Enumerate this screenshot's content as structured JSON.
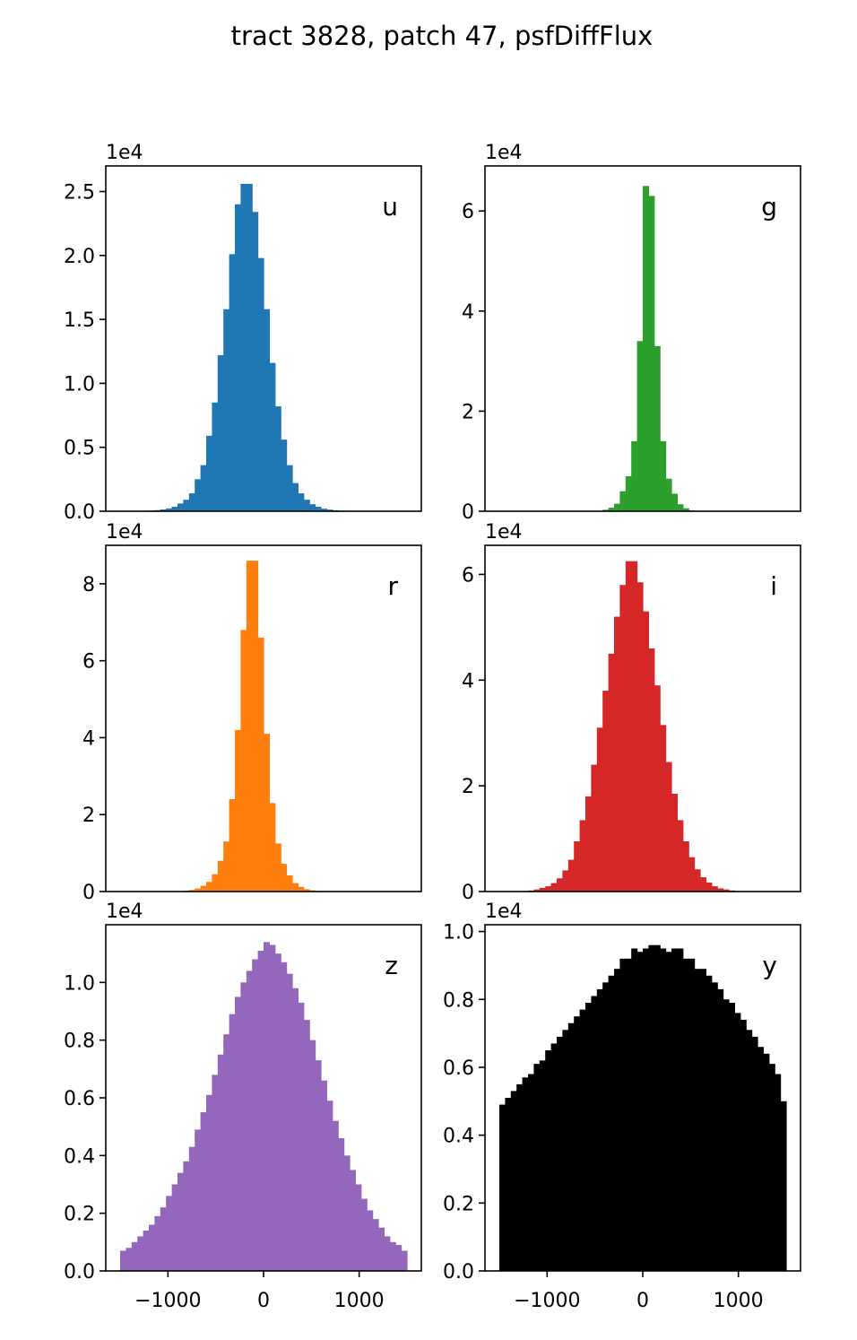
{
  "figure_title": "tract 3828, patch 47, psfDiffFlux",
  "chart_data": [
    {
      "type": "bar",
      "panel": "u",
      "band_label": "u",
      "color": "#1f77b4",
      "multiplier_label": "1e4",
      "xlim": [
        -1650,
        1650
      ],
      "ylim": [
        0,
        2.7
      ],
      "yticks": [
        0.0,
        0.5,
        1.0,
        1.5,
        2.0,
        2.5
      ],
      "ytick_labels": [
        "0.0",
        "0.5",
        "1.0",
        "1.5",
        "2.0",
        "2.5"
      ],
      "xticks": [],
      "xtick_labels": [],
      "bin_start": -1500,
      "bin_width": 60,
      "values": [
        0.001,
        0.001,
        0.002,
        0.003,
        0.004,
        0.006,
        0.009,
        0.014,
        0.022,
        0.035,
        0.06,
        0.09,
        0.14,
        0.25,
        0.36,
        0.59,
        0.85,
        1.22,
        1.58,
        2.01,
        2.4,
        2.56,
        2.56,
        2.34,
        1.98,
        1.58,
        1.16,
        0.82,
        0.56,
        0.36,
        0.22,
        0.14,
        0.09,
        0.055,
        0.035,
        0.02,
        0.013,
        0.008,
        0.005,
        0.003,
        0.002,
        0.001,
        0.001,
        0.0,
        0.0,
        0.0,
        0.0,
        0.0,
        0.0,
        0.0
      ]
    },
    {
      "type": "bar",
      "panel": "g",
      "band_label": "g",
      "color": "#2ca02c",
      "multiplier_label": "1e4",
      "xlim": [
        -1650,
        1650
      ],
      "ylim": [
        0,
        6.9
      ],
      "yticks": [
        0,
        2,
        4,
        6
      ],
      "ytick_labels": [
        "0",
        "2",
        "4",
        "6"
      ],
      "xticks": [],
      "xtick_labels": [],
      "bin_start": -1500,
      "bin_width": 60,
      "values": [
        0,
        0,
        0,
        0,
        0,
        0,
        0,
        0,
        0,
        0,
        0,
        0,
        0,
        0,
        0,
        0.002,
        0.005,
        0.01,
        0.03,
        0.07,
        0.15,
        0.4,
        0.7,
        1.4,
        3.4,
        6.5,
        6.3,
        3.3,
        1.4,
        0.65,
        0.35,
        0.14,
        0.06,
        0.02,
        0.008,
        0.003,
        0.001,
        0,
        0,
        0,
        0,
        0,
        0,
        0,
        0,
        0,
        0,
        0,
        0,
        0
      ]
    },
    {
      "type": "bar",
      "panel": "r",
      "band_label": "r",
      "color": "#ff7f0e",
      "multiplier_label": "1e4",
      "xlim": [
        -1650,
        1650
      ],
      "ylim": [
        0,
        9.0
      ],
      "yticks": [
        0,
        2,
        4,
        6,
        8
      ],
      "ytick_labels": [
        "0",
        "2",
        "4",
        "6",
        "8"
      ],
      "xticks": [],
      "xtick_labels": [],
      "bin_start": -1500,
      "bin_width": 60,
      "values": [
        0,
        0,
        0,
        0,
        0,
        0,
        0,
        0,
        0,
        0.005,
        0.01,
        0.02,
        0.04,
        0.08,
        0.15,
        0.25,
        0.45,
        0.8,
        1.3,
        2.4,
        4.2,
        6.8,
        8.6,
        8.6,
        6.6,
        4.1,
        2.3,
        1.25,
        0.72,
        0.42,
        0.22,
        0.12,
        0.06,
        0.03,
        0.015,
        0.007,
        0.003,
        0,
        0,
        0,
        0,
        0,
        0,
        0,
        0,
        0,
        0,
        0,
        0,
        0
      ]
    },
    {
      "type": "bar",
      "panel": "i",
      "band_label": "i",
      "color": "#d62728",
      "multiplier_label": "1e4",
      "xlim": [
        -1650,
        1650
      ],
      "ylim": [
        0,
        6.55
      ],
      "yticks": [
        0,
        2,
        4,
        6
      ],
      "ytick_labels": [
        "0",
        "2",
        "4",
        "6"
      ],
      "xticks": [],
      "xtick_labels": [],
      "bin_start": -1500,
      "bin_width": 60,
      "values": [
        0.001,
        0.002,
        0.004,
        0.006,
        0.01,
        0.02,
        0.04,
        0.07,
        0.1,
        0.16,
        0.25,
        0.4,
        0.6,
        0.95,
        1.35,
        1.8,
        2.4,
        3.1,
        3.8,
        4.5,
        5.2,
        5.8,
        6.25,
        6.25,
        5.85,
        5.3,
        4.6,
        3.9,
        3.15,
        2.45,
        1.85,
        1.35,
        0.95,
        0.65,
        0.42,
        0.27,
        0.17,
        0.1,
        0.06,
        0.04,
        0.02,
        0.01,
        0.006,
        0.003,
        0.002,
        0.001,
        0,
        0,
        0,
        0
      ]
    },
    {
      "type": "bar",
      "panel": "z",
      "band_label": "z",
      "color": "#9467bd",
      "multiplier_label": "1e4",
      "xlim": [
        -1650,
        1650
      ],
      "ylim": [
        0,
        1.2
      ],
      "yticks": [
        0.0,
        0.2,
        0.4,
        0.6,
        0.8,
        1.0
      ],
      "ytick_labels": [
        "0.0",
        "0.2",
        "0.4",
        "0.6",
        "0.8",
        "1.0"
      ],
      "xticks": [
        -1000,
        0,
        1000
      ],
      "xtick_labels": [
        "−1000",
        "0",
        "1000"
      ],
      "bin_start": -1500,
      "bin_width": 60,
      "values": [
        0.07,
        0.08,
        0.1,
        0.12,
        0.14,
        0.16,
        0.19,
        0.22,
        0.26,
        0.3,
        0.34,
        0.38,
        0.43,
        0.49,
        0.55,
        0.61,
        0.68,
        0.75,
        0.82,
        0.89,
        0.95,
        1.0,
        1.04,
        1.08,
        1.11,
        1.14,
        1.13,
        1.1,
        1.07,
        1.03,
        0.98,
        0.93,
        0.87,
        0.8,
        0.73,
        0.66,
        0.59,
        0.52,
        0.46,
        0.4,
        0.35,
        0.3,
        0.25,
        0.21,
        0.18,
        0.15,
        0.12,
        0.1,
        0.09,
        0.07
      ]
    },
    {
      "type": "bar",
      "panel": "y",
      "band_label": "y",
      "color": "#000000",
      "multiplier_label": "1e4",
      "xlim": [
        -1650,
        1650
      ],
      "ylim": [
        0,
        1.02
      ],
      "yticks": [
        0.0,
        0.2,
        0.4,
        0.6,
        0.8,
        1.0
      ],
      "ytick_labels": [
        "0.0",
        "0.2",
        "0.4",
        "0.6",
        "0.8",
        "1.0"
      ],
      "xticks": [
        -1000,
        0,
        1000
      ],
      "xtick_labels": [
        "−1000",
        "0",
        "1000"
      ],
      "bin_start": -1500,
      "bin_width": 60,
      "values": [
        0.49,
        0.51,
        0.53,
        0.55,
        0.57,
        0.58,
        0.61,
        0.62,
        0.65,
        0.67,
        0.69,
        0.71,
        0.73,
        0.75,
        0.77,
        0.79,
        0.81,
        0.83,
        0.85,
        0.87,
        0.89,
        0.92,
        0.92,
        0.95,
        0.94,
        0.95,
        0.96,
        0.96,
        0.95,
        0.94,
        0.95,
        0.95,
        0.92,
        0.92,
        0.89,
        0.89,
        0.87,
        0.85,
        0.83,
        0.8,
        0.79,
        0.76,
        0.74,
        0.71,
        0.69,
        0.66,
        0.64,
        0.61,
        0.58,
        0.5
      ]
    }
  ]
}
